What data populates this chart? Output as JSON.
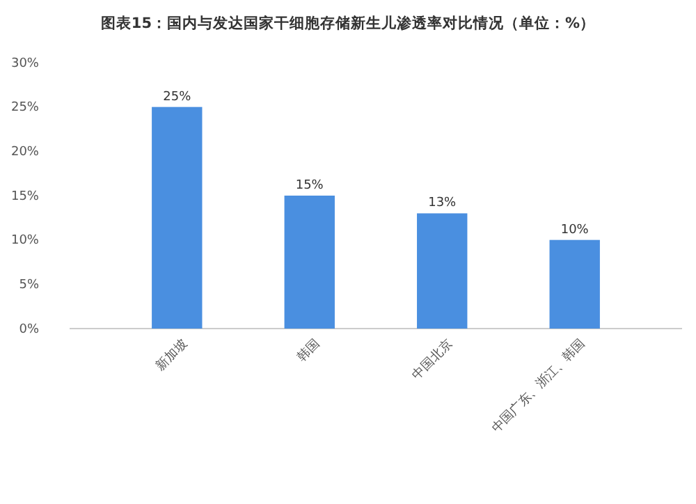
{
  "chart_data": {
    "type": "bar",
    "title": "图表15：国内与发达国家干细胞存储新生儿渗透率对比情况（单位：%）",
    "categories": [
      "新加坡",
      "韩国",
      "中国北京",
      "中国广东、浙江、韩国"
    ],
    "values": [
      25,
      15,
      13,
      10
    ],
    "value_labels": [
      "25%",
      "15%",
      "13%",
      "10%"
    ],
    "color": "#4a8fe0",
    "ylim": [
      0,
      30
    ],
    "yticks": [
      {
        "value": 0,
        "label": "0%"
      },
      {
        "value": 5,
        "label": "5%"
      },
      {
        "value": 10,
        "label": "10%"
      },
      {
        "value": 15,
        "label": "15%"
      },
      {
        "value": 20,
        "label": "20%"
      },
      {
        "value": 25,
        "label": "25%"
      },
      {
        "value": 30,
        "label": "30%"
      }
    ],
    "grid": false
  }
}
